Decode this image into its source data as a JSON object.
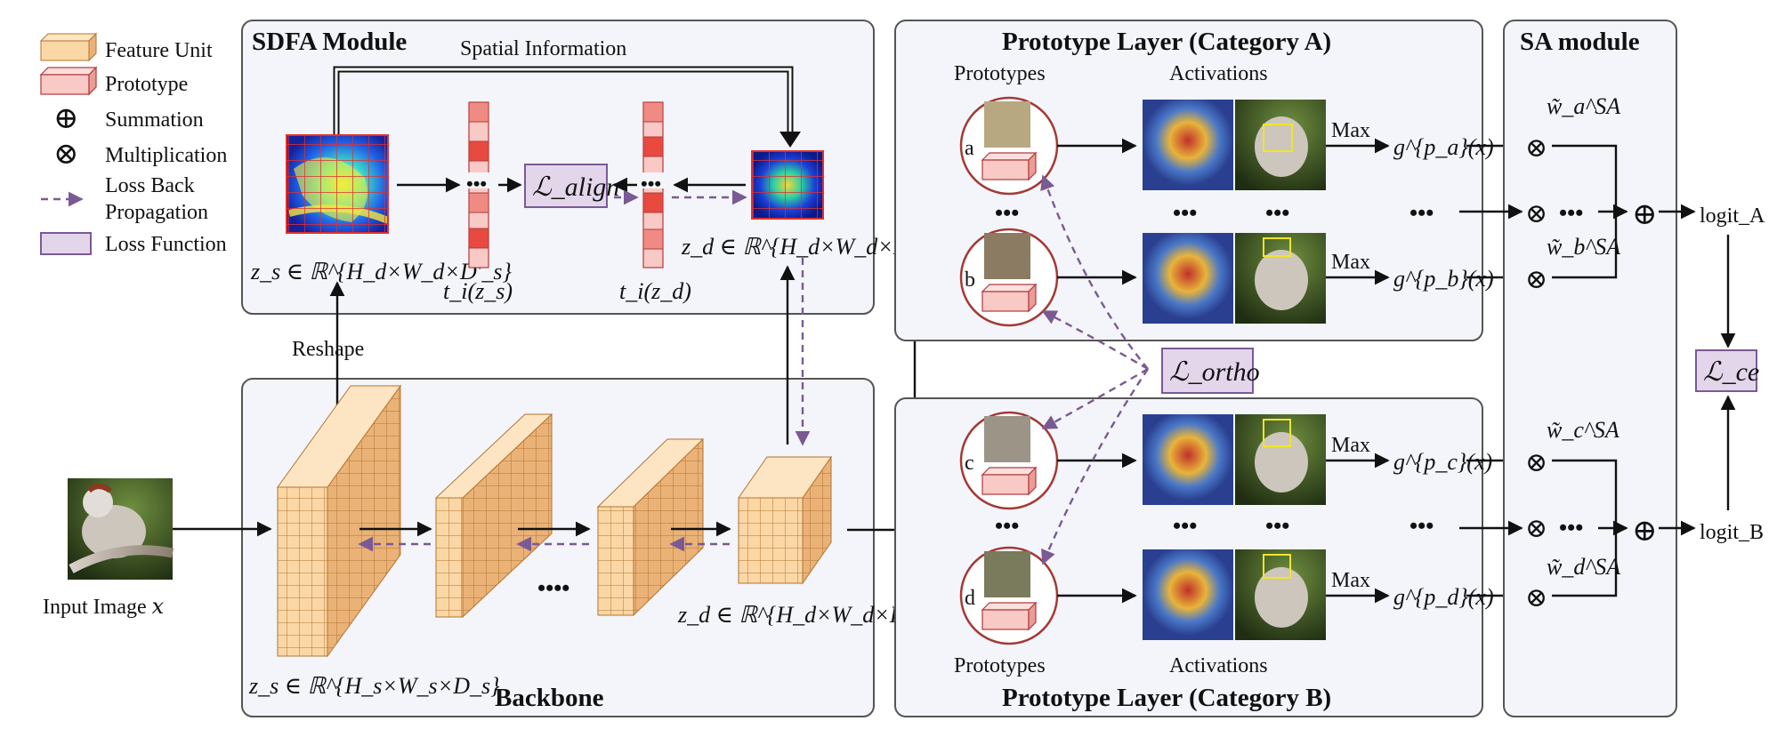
{
  "legend": {
    "feature_unit": "Feature Unit",
    "prototype": "Prototype",
    "summation": "Summation",
    "multiplication": "Multiplication",
    "loss_back_1": "Loss Back",
    "loss_back_2": "Propagation",
    "loss_function": "Loss Function",
    "sum_symbol": "⊕",
    "mul_symbol": "⊗"
  },
  "sdfa": {
    "title": "SDFA Module",
    "spatial_info": "Spatial Information",
    "zs_label": "z_s ∈ ℝ^{H_d×W_d×D′_s}",
    "ti_zs": "t_i(z_s)",
    "ti_zd": "t_i(z_d)",
    "zd_label": "z_d ∈ ℝ^{H_d×W_d×D_d}",
    "loss_align": "ℒ_align",
    "dots": "•••"
  },
  "backbone": {
    "title": "Backbone",
    "reshape": "Reshape",
    "input_label": "Input Image 𝑥",
    "zs_label": "z_s ∈ ℝ^{H_s×W_s×D_s}",
    "zd_label": "z_d ∈ ℝ^{H_d×W_d×D_d}",
    "dots": "••••"
  },
  "proto_a": {
    "title": "Prototype Layer (Category A)",
    "prototypes": "Prototypes",
    "activations": "Activations",
    "rows": [
      {
        "letter": "a",
        "max": "Max",
        "g": "g^{p_a}(x)"
      },
      {
        "letter": "b",
        "max": "Max",
        "g": "g^{p_b}(x)"
      }
    ],
    "dots": "•••"
  },
  "proto_b": {
    "title": "Prototype Layer (Category B)",
    "prototypes": "Prototypes",
    "activations": "Activations",
    "rows": [
      {
        "letter": "c",
        "max": "Max",
        "g": "g^{p_c}(x)"
      },
      {
        "letter": "d",
        "max": "Max",
        "g": "g^{p_d}(x)"
      }
    ],
    "dots": "•••"
  },
  "loss_ortho": "ℒ_ortho",
  "sa": {
    "title": "SA module",
    "w_a": "w̃_a^SA",
    "w_b": "w̃_b^SA",
    "w_c": "w̃_c^SA",
    "w_d": "w̃_d^SA",
    "logit_a": "logit_A",
    "logit_b": "logit_B",
    "loss_ce": "ℒ_ce",
    "dots": "•••"
  }
}
